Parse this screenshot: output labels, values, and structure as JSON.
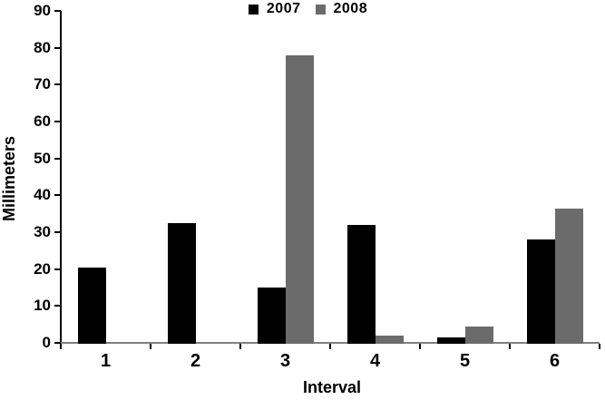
{
  "chart_data": {
    "type": "bar",
    "title": "",
    "categories": [
      "1",
      "2",
      "3",
      "4",
      "5",
      "6"
    ],
    "series": [
      {
        "name": "2007",
        "color": "#000000",
        "values": [
          20.5,
          32.5,
          15,
          32,
          1.5,
          28
        ]
      },
      {
        "name": "2008",
        "color": "#6b6b6b",
        "values": [
          0,
          0,
          78,
          2,
          4.5,
          36.5
        ]
      }
    ],
    "xlabel": "Interval",
    "ylabel": "Millimeters",
    "ylim": [
      0,
      90
    ],
    "ytick_step": 10,
    "ytick_labels": [
      "0",
      "10",
      "20",
      "30",
      "40",
      "50",
      "60",
      "70",
      "80",
      "90"
    ],
    "grid": false,
    "legend_position": "top-center",
    "colors": {
      "bar_2007": "#000000",
      "bar_2008": "#6b6b6b",
      "y_axis_line": "#000000",
      "x_baseline": "#808080",
      "tick": "#000000",
      "text": "#000000",
      "background": "#ffffff"
    }
  }
}
